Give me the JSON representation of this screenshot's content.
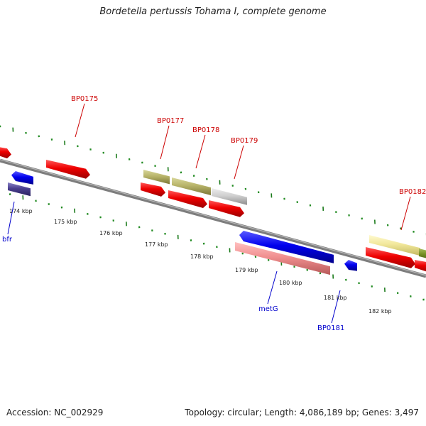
{
  "title": "Bordetella pertussis Tohama I, complete genome",
  "footer": {
    "accession_label": "Accession:",
    "accession": "NC_002929",
    "topology_label": "Topology:",
    "topology": "circular",
    "length_label": "Length:",
    "length": "4,086,189 bp",
    "genes_label": "Genes:",
    "genes": "3,497"
  },
  "colors": {
    "backbone": "#888888",
    "tick_major": "#1a7a1a",
    "tick_minor": "#228b22",
    "label_forward": "#cc0000",
    "label_reverse": "#0000cc"
  },
  "kbp_labels": [
    "174 kbp",
    "175 kbp",
    "176 kbp",
    "177 kbp",
    "178 kbp",
    "179 kbp",
    "180 kbp",
    "181 kbp",
    "182 kbp"
  ],
  "gene_labels": [
    {
      "text": "BP0175",
      "strand": "forward"
    },
    {
      "text": "BP0177",
      "strand": "forward"
    },
    {
      "text": "BP0178",
      "strand": "forward"
    },
    {
      "text": "BP0179",
      "strand": "forward"
    },
    {
      "text": "BP0182",
      "strand": "forward"
    },
    {
      "text": "bfr",
      "strand": "reverse"
    },
    {
      "text": "metG",
      "strand": "reverse"
    },
    {
      "text": "BP0181",
      "strand": "reverse"
    }
  ]
}
